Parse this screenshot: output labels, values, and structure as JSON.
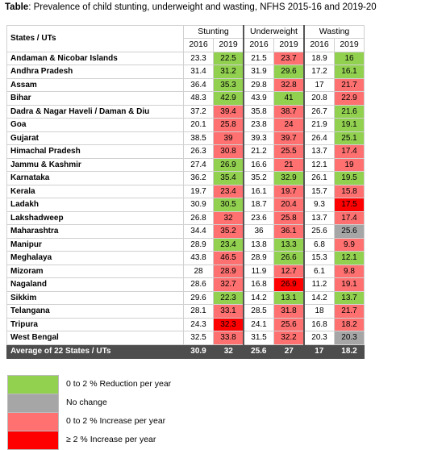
{
  "title": {
    "prefix": "Table",
    "text": ": Prevalence of child stunting, underweight and wasting, NFHS 2015-16 and 2019-20"
  },
  "colors": {
    "green": "#92d050",
    "grey": "#a6a6a6",
    "pink": "#ff7070",
    "red": "#ff0000",
    "none": "#ffffff"
  },
  "table": {
    "state_header": "States / UTs",
    "groups": [
      "Stunting",
      "Underweight",
      "Wasting"
    ],
    "years": [
      "2016",
      "2019"
    ],
    "rows": [
      {
        "state": "Andaman & Nicobar Islands",
        "values": [
          "23.3",
          "22.5",
          "21.5",
          "23.7",
          "18.9",
          "16"
        ],
        "colors": [
          "none",
          "green",
          "none",
          "pink",
          "none",
          "green"
        ]
      },
      {
        "state": "Andhra Pradesh",
        "values": [
          "31.4",
          "31.2",
          "31.9",
          "29.6",
          "17.2",
          "16.1"
        ],
        "colors": [
          "none",
          "green",
          "none",
          "green",
          "none",
          "green"
        ]
      },
      {
        "state": "Assam",
        "values": [
          "36.4",
          "35.3",
          "29.8",
          "32.8",
          "17",
          "21.7"
        ],
        "colors": [
          "none",
          "green",
          "none",
          "pink",
          "none",
          "pink"
        ]
      },
      {
        "state": "Bihar",
        "values": [
          "48.3",
          "42.9",
          "43.9",
          "41",
          "20.8",
          "22.9"
        ],
        "colors": [
          "none",
          "green",
          "none",
          "green",
          "none",
          "pink"
        ]
      },
      {
        "state": "Dadra & Nagar Haveli / Daman & Diu",
        "values": [
          "37.2",
          "39.4",
          "35.8",
          "38.7",
          "26.7",
          "21.6"
        ],
        "colors": [
          "none",
          "pink",
          "none",
          "pink",
          "none",
          "green"
        ]
      },
      {
        "state": "Goa",
        "values": [
          "20.1",
          "25.8",
          "23.8",
          "24",
          "21.9",
          "19.1"
        ],
        "colors": [
          "none",
          "pink",
          "none",
          "pink",
          "none",
          "green"
        ]
      },
      {
        "state": "Gujarat",
        "values": [
          "38.5",
          "39",
          "39.3",
          "39.7",
          "26.4",
          "25.1"
        ],
        "colors": [
          "none",
          "pink",
          "none",
          "pink",
          "none",
          "green"
        ]
      },
      {
        "state": "Himachal Pradesh",
        "values": [
          "26.3",
          "30.8",
          "21.2",
          "25.5",
          "13.7",
          "17.4"
        ],
        "colors": [
          "none",
          "pink",
          "none",
          "pink",
          "none",
          "pink"
        ]
      },
      {
        "state": "Jammu & Kashmir",
        "values": [
          "27.4",
          "26.9",
          "16.6",
          "21",
          "12.1",
          "19"
        ],
        "colors": [
          "none",
          "green",
          "none",
          "pink",
          "none",
          "pink"
        ]
      },
      {
        "state": "Karnataka",
        "values": [
          "36.2",
          "35.4",
          "35.2",
          "32.9",
          "26.1",
          "19.5"
        ],
        "colors": [
          "none",
          "green",
          "none",
          "green",
          "none",
          "green"
        ]
      },
      {
        "state": "Kerala",
        "values": [
          "19.7",
          "23.4",
          "16.1",
          "19.7",
          "15.7",
          "15.8"
        ],
        "colors": [
          "none",
          "pink",
          "none",
          "pink",
          "none",
          "pink"
        ]
      },
      {
        "state": "Ladakh",
        "values": [
          "30.9",
          "30.5",
          "18.7",
          "20.4",
          "9.3",
          "17.5"
        ],
        "colors": [
          "none",
          "green",
          "none",
          "pink",
          "none",
          "red"
        ]
      },
      {
        "state": "Lakshadweep",
        "values": [
          "26.8",
          "32",
          "23.6",
          "25.8",
          "13.7",
          "17.4"
        ],
        "colors": [
          "none",
          "pink",
          "none",
          "pink",
          "none",
          "pink"
        ]
      },
      {
        "state": "Maharashtra",
        "values": [
          "34.4",
          "35.2",
          "36",
          "36.1",
          "25.6",
          "25.6"
        ],
        "colors": [
          "none",
          "pink",
          "none",
          "pink",
          "none",
          "grey"
        ]
      },
      {
        "state": "Manipur",
        "values": [
          "28.9",
          "23.4",
          "13.8",
          "13.3",
          "6.8",
          "9.9"
        ],
        "colors": [
          "none",
          "green",
          "none",
          "green",
          "none",
          "pink"
        ]
      },
      {
        "state": "Meghalaya",
        "values": [
          "43.8",
          "46.5",
          "28.9",
          "26.6",
          "15.3",
          "12.1"
        ],
        "colors": [
          "none",
          "pink",
          "none",
          "green",
          "none",
          "green"
        ]
      },
      {
        "state": "Mizoram",
        "values": [
          "28",
          "28.9",
          "11.9",
          "12.7",
          "6.1",
          "9.8"
        ],
        "colors": [
          "none",
          "pink",
          "none",
          "pink",
          "none",
          "pink"
        ]
      },
      {
        "state": "Nagaland",
        "values": [
          "28.6",
          "32.7",
          "16.8",
          "26.9",
          "11.2",
          "19.1"
        ],
        "colors": [
          "none",
          "pink",
          "none",
          "red",
          "none",
          "pink"
        ]
      },
      {
        "state": "Sikkim",
        "values": [
          "29.6",
          "22.3",
          "14.2",
          "13.1",
          "14.2",
          "13.7"
        ],
        "colors": [
          "none",
          "green",
          "none",
          "green",
          "none",
          "green"
        ]
      },
      {
        "state": "Telangana",
        "values": [
          "28.1",
          "33.1",
          "28.5",
          "31.8",
          "18",
          "21.7"
        ],
        "colors": [
          "none",
          "pink",
          "none",
          "pink",
          "none",
          "pink"
        ]
      },
      {
        "state": "Tripura",
        "values": [
          "24.3",
          "32.3",
          "24.1",
          "25.6",
          "16.8",
          "18.2"
        ],
        "colors": [
          "none",
          "red",
          "none",
          "pink",
          "none",
          "pink"
        ]
      },
      {
        "state": "West Bengal",
        "values": [
          "32.5",
          "33.8",
          "31.5",
          "32.2",
          "20.3",
          "20.3"
        ],
        "colors": [
          "none",
          "pink",
          "none",
          "pink",
          "none",
          "grey"
        ]
      }
    ],
    "average": {
      "label": "Average of 22 States / UTs",
      "values": [
        "30.9",
        "32",
        "25.6",
        "27",
        "17",
        "18.2"
      ]
    }
  },
  "legend": [
    {
      "label": "0 to 2 % Reduction per year",
      "color": "green"
    },
    {
      "label": "No change",
      "color": "grey"
    },
    {
      "label": "0 to 2 % Increase per year",
      "color": "pink"
    },
    {
      "label": "≥ 2 % Increase per year",
      "color": "red"
    }
  ]
}
